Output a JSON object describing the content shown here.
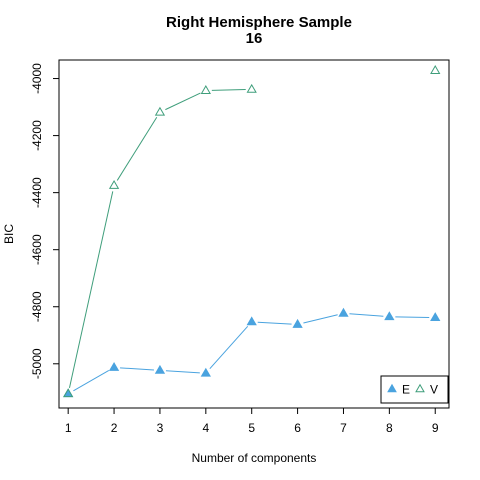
{
  "chart_data": {
    "type": "line",
    "title": "Right Hemisphere Sample",
    "subtitle": "16",
    "xlabel": "Number of components",
    "ylabel": "BIC",
    "x": [
      1,
      2,
      3,
      4,
      5,
      6,
      7,
      8,
      9
    ],
    "xlim": [
      0.8,
      9.3
    ],
    "ylim": [
      -5155,
      -3935
    ],
    "x_ticks": [
      1,
      2,
      3,
      4,
      5,
      6,
      7,
      8,
      9
    ],
    "y_ticks": [
      -5000,
      -4800,
      -4600,
      -4400,
      -4200,
      -4000
    ],
    "grid": false,
    "legend_position": "bottom-right",
    "series": [
      {
        "name": "E",
        "marker": "filled-triangle",
        "color": "#4aa3df",
        "values": [
          -5105,
          -5013,
          -5023,
          -5033,
          -4853,
          -4862,
          -4823,
          -4835,
          -4838
        ]
      },
      {
        "name": "V",
        "marker": "open-triangle",
        "color": "#3f9e7b",
        "values": [
          -5105,
          -4375,
          -4118,
          -4042,
          -4038,
          null,
          null,
          null,
          -3972
        ]
      }
    ]
  }
}
